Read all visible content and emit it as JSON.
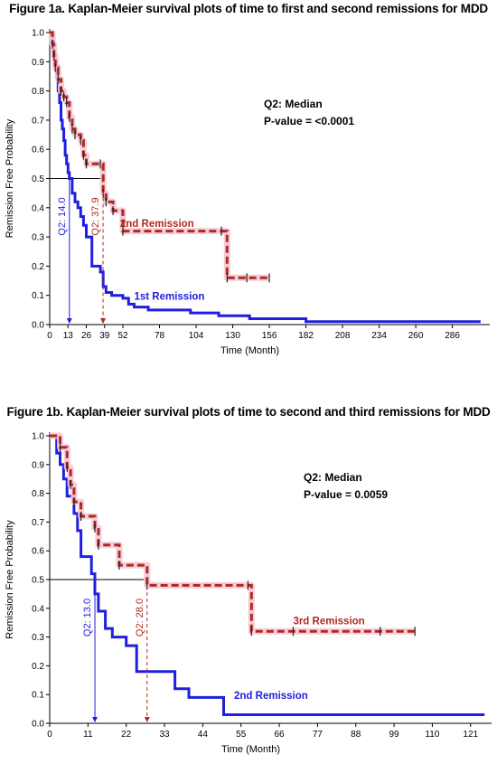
{
  "chart_data": [
    {
      "type": "line",
      "title": "Figure 1a. Kaplan-Meier survival plots of time to first and second remissions for MDD",
      "xlabel": "Time (Month)",
      "ylabel": "Remission Free Probability",
      "xlim": [
        0,
        310
      ],
      "ylim": [
        0,
        1.0
      ],
      "xticks": [
        0,
        13,
        26,
        39,
        52,
        78,
        104,
        130,
        156,
        182,
        208,
        234,
        260,
        286
      ],
      "yticks": [
        0.0,
        0.1,
        0.2,
        0.3,
        0.4,
        0.5,
        0.6,
        0.7,
        0.8,
        0.9,
        1.0
      ],
      "annotations": [
        "Q2: Median",
        "P-value = <0.0001"
      ],
      "median_line": 0.5,
      "series": [
        {
          "name": "1st Remission",
          "color": "#1f1fe0",
          "style": "solid",
          "median": 14.0,
          "median_label": "Q2: 14.0",
          "x": [
            0,
            2,
            3,
            4,
            5,
            6,
            7,
            8,
            9,
            10,
            11,
            12,
            13,
            14,
            16,
            18,
            20,
            22,
            24,
            26,
            30,
            36,
            38,
            40,
            44,
            52,
            56,
            60,
            70,
            100,
            104,
            120,
            142,
            182,
            306
          ],
          "y": [
            1.0,
            0.97,
            0.93,
            0.9,
            0.85,
            0.8,
            0.76,
            0.7,
            0.67,
            0.63,
            0.58,
            0.55,
            0.52,
            0.5,
            0.45,
            0.42,
            0.4,
            0.37,
            0.34,
            0.3,
            0.2,
            0.18,
            0.13,
            0.11,
            0.1,
            0.09,
            0.07,
            0.06,
            0.05,
            0.04,
            0.04,
            0.03,
            0.02,
            0.01,
            0.01
          ]
        },
        {
          "name": "2nd Remission",
          "color": "#b02a1e",
          "style": "dashed",
          "median": 37.9,
          "median_label": "Q2: 37.9",
          "x": [
            0,
            2,
            3,
            4,
            6,
            8,
            10,
            12,
            14,
            16,
            18,
            22,
            24,
            26,
            36,
            38,
            40,
            45,
            52,
            122,
            126,
            140,
            156
          ],
          "y": [
            1.0,
            0.96,
            0.92,
            0.88,
            0.84,
            0.8,
            0.78,
            0.76,
            0.71,
            0.67,
            0.65,
            0.63,
            0.58,
            0.55,
            0.55,
            0.45,
            0.42,
            0.39,
            0.32,
            0.32,
            0.16,
            0.16,
            0.16
          ]
        }
      ]
    },
    {
      "type": "line",
      "title": "Figure 1b. Kaplan-Meier survival plots of time to second and third remissions for MDD",
      "xlabel": "Time (Month)",
      "ylabel": "Remission Free Probability",
      "xlim": [
        0,
        126
      ],
      "ylim": [
        0,
        1.0
      ],
      "xticks": [
        0,
        11,
        22,
        33,
        44,
        55,
        66,
        77,
        88,
        99,
        110,
        121
      ],
      "yticks": [
        0.0,
        0.1,
        0.2,
        0.3,
        0.4,
        0.5,
        0.6,
        0.7,
        0.8,
        0.9,
        1.0
      ],
      "annotations": [
        "Q2: Median",
        "P-value = 0.0059"
      ],
      "median_line": 0.5,
      "series": [
        {
          "name": "2nd Remission",
          "color": "#1f1fe0",
          "style": "solid",
          "median": 13.0,
          "median_label": "Q2: 13.0",
          "x": [
            0,
            2,
            3,
            4,
            5,
            7,
            8,
            9,
            10,
            12,
            13,
            14,
            16,
            18,
            22,
            25,
            29,
            36,
            40,
            50,
            125
          ],
          "y": [
            1.0,
            0.94,
            0.9,
            0.85,
            0.79,
            0.73,
            0.67,
            0.58,
            0.58,
            0.52,
            0.45,
            0.39,
            0.33,
            0.3,
            0.27,
            0.18,
            0.18,
            0.12,
            0.09,
            0.03,
            0.03
          ]
        },
        {
          "name": "3rd Remission",
          "color": "#b02a1e",
          "style": "dashed",
          "median": 28.0,
          "median_label": "Q2: 28.0",
          "x": [
            0,
            3,
            5,
            6,
            7,
            9,
            13,
            14,
            20,
            28,
            57,
            58,
            70,
            95,
            105
          ],
          "y": [
            1.0,
            0.96,
            0.89,
            0.83,
            0.77,
            0.72,
            0.68,
            0.62,
            0.55,
            0.48,
            0.48,
            0.32,
            0.32,
            0.32,
            0.32
          ]
        }
      ]
    }
  ]
}
